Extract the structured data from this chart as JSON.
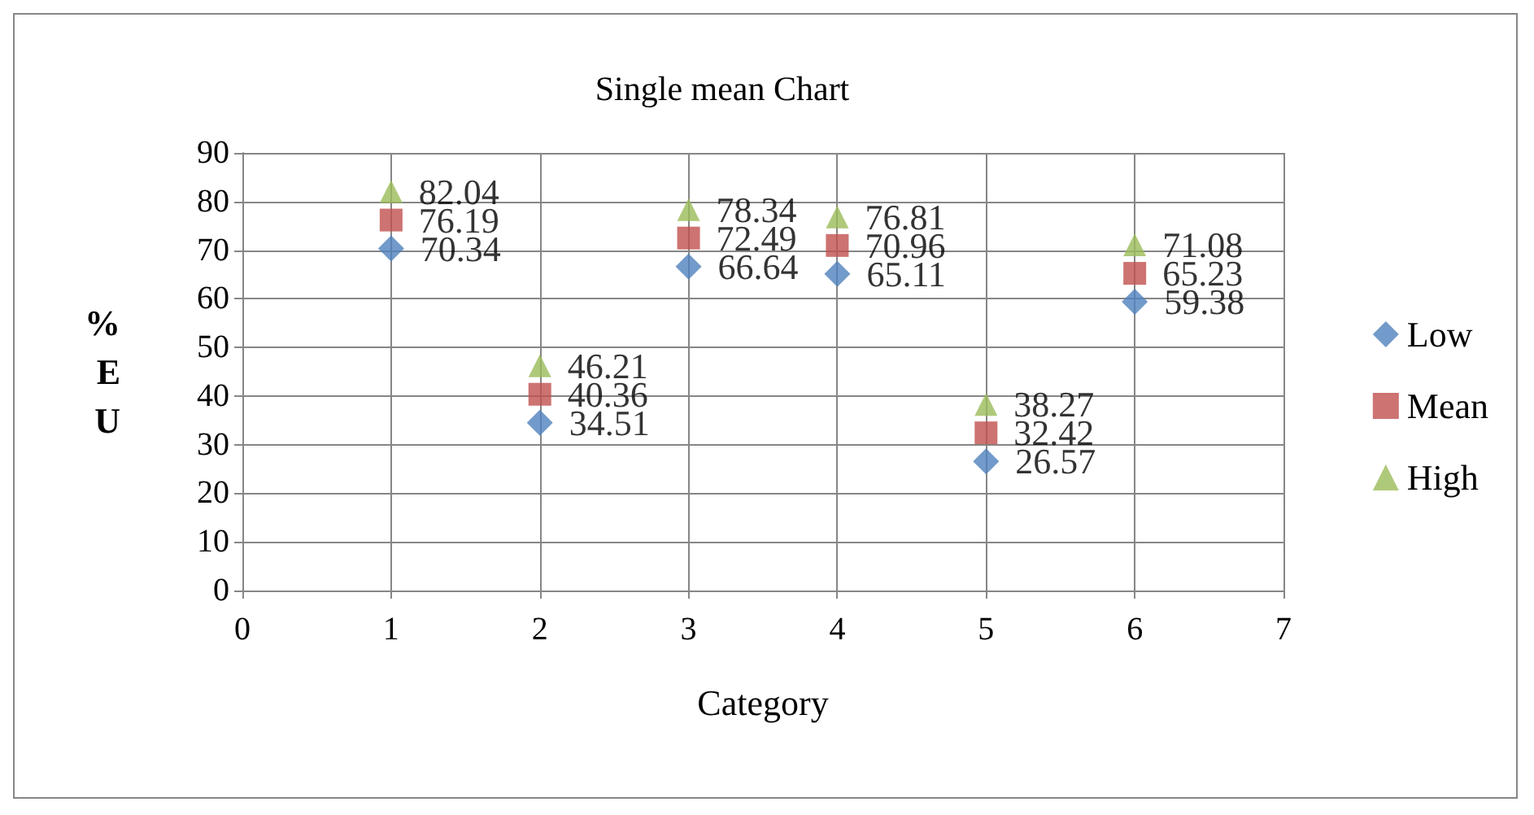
{
  "chart_data": {
    "type": "scatter",
    "title": "Single mean Chart",
    "xlabel": "Category",
    "ylabel": "%EU",
    "x": [
      1,
      2,
      3,
      4,
      5,
      6
    ],
    "series": [
      {
        "name": "Low",
        "color": "#4f81bd",
        "marker": "diamond",
        "values": [
          70.34,
          34.51,
          66.64,
          65.11,
          26.57,
          59.38
        ]
      },
      {
        "name": "Mean",
        "color": "#c0504d",
        "marker": "square",
        "values": [
          76.19,
          40.36,
          72.49,
          70.96,
          32.42,
          65.23
        ]
      },
      {
        "name": "High",
        "color": "#9bbb59",
        "marker": "triangle",
        "values": [
          82.04,
          46.21,
          78.34,
          76.81,
          38.27,
          71.08
        ]
      }
    ],
    "xlim": [
      0,
      7
    ],
    "xticks": [
      0,
      1,
      2,
      3,
      4,
      5,
      6,
      7
    ],
    "ylim": [
      0,
      90
    ],
    "yticks": [
      0,
      10,
      20,
      30,
      40,
      50,
      60,
      70,
      80,
      90
    ],
    "grid": true,
    "legend": "right",
    "data_labels": true
  }
}
